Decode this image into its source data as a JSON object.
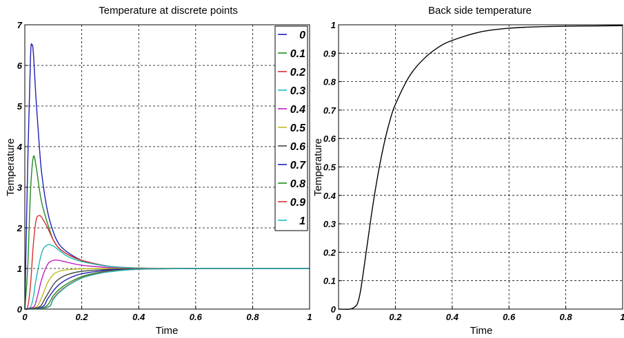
{
  "chart_data": [
    {
      "type": "line",
      "title": "Temperature at discrete points",
      "xlabel": "Time",
      "ylabel": "Temperature",
      "xlim": [
        0,
        1
      ],
      "ylim": [
        0,
        7
      ],
      "xticks": [
        0,
        0.2,
        0.4,
        0.6,
        0.8,
        1
      ],
      "yticks": [
        0,
        1,
        2,
        3,
        4,
        5,
        6,
        7
      ],
      "xtick_labels": [
        "0",
        "0.2",
        "0.4",
        "0.6",
        "0.8",
        "1"
      ],
      "ytick_labels": [
        "0",
        "1",
        "2",
        "3",
        "4",
        "5",
        "6",
        "7"
      ],
      "grid": true,
      "legend_position": "top-right",
      "series": [
        {
          "name": "0",
          "color": "#1f1fb4",
          "x": [
            0,
            0.01,
            0.02,
            0.025,
            0.03,
            0.04,
            0.05,
            0.06,
            0.08,
            0.1,
            0.12,
            0.15,
            0.2,
            0.25,
            0.3,
            0.4,
            0.5,
            0.6,
            0.8,
            1
          ],
          "y": [
            0,
            3.5,
            6.2,
            6.5,
            6.3,
            5.1,
            4.1,
            3.3,
            2.4,
            1.9,
            1.6,
            1.4,
            1.2,
            1.1,
            1.05,
            1.01,
            1.0,
            1.0,
            1.0,
            1.0
          ]
        },
        {
          "name": "0.1",
          "color": "#1e8c1e",
          "x": [
            0,
            0.01,
            0.02,
            0.03,
            0.04,
            0.05,
            0.06,
            0.08,
            0.1,
            0.12,
            0.15,
            0.2,
            0.3,
            0.4,
            0.6,
            0.8,
            1
          ],
          "y": [
            0,
            1.0,
            2.9,
            3.75,
            3.5,
            3.0,
            2.6,
            2.1,
            1.7,
            1.5,
            1.35,
            1.2,
            1.05,
            1.01,
            1.0,
            1.0,
            1.0
          ]
        },
        {
          "name": "0.2",
          "color": "#d62f2f",
          "x": [
            0,
            0.01,
            0.02,
            0.03,
            0.04,
            0.05,
            0.06,
            0.08,
            0.1,
            0.12,
            0.15,
            0.2,
            0.3,
            0.4,
            0.6,
            0.8,
            1
          ],
          "y": [
            0,
            0.05,
            0.6,
            1.6,
            2.2,
            2.3,
            2.25,
            2.0,
            1.7,
            1.5,
            1.35,
            1.2,
            1.05,
            1.01,
            1.0,
            1.0,
            1.0
          ]
        },
        {
          "name": "0.3",
          "color": "#20b8b8",
          "x": [
            0,
            0.02,
            0.03,
            0.04,
            0.06,
            0.08,
            0.1,
            0.12,
            0.15,
            0.2,
            0.3,
            0.4,
            0.6,
            0.8,
            1
          ],
          "y": [
            0,
            0.05,
            0.3,
            0.75,
            1.4,
            1.58,
            1.55,
            1.45,
            1.3,
            1.17,
            1.05,
            1.01,
            1.0,
            1.0,
            1.0
          ]
        },
        {
          "name": "0.4",
          "color": "#c21fc2",
          "x": [
            0,
            0.03,
            0.04,
            0.06,
            0.08,
            0.1,
            0.12,
            0.15,
            0.2,
            0.3,
            0.4,
            0.6,
            0.8,
            1
          ],
          "y": [
            0,
            0.05,
            0.2,
            0.75,
            1.1,
            1.2,
            1.2,
            1.15,
            1.08,
            1.02,
            1.0,
            1.0,
            1.0,
            1.0
          ]
        },
        {
          "name": "0.5",
          "color": "#bcbc1f",
          "x": [
            0,
            0.04,
            0.06,
            0.08,
            0.1,
            0.12,
            0.15,
            0.2,
            0.3,
            0.4,
            0.6,
            0.8,
            1
          ],
          "y": [
            0,
            0.05,
            0.3,
            0.65,
            0.85,
            0.93,
            0.97,
            0.99,
            1.0,
            1.0,
            1.0,
            1.0,
            1.0
          ]
        },
        {
          "name": "0.6",
          "color": "#444444",
          "x": [
            0,
            0.05,
            0.07,
            0.1,
            0.12,
            0.15,
            0.2,
            0.3,
            0.4,
            0.6,
            0.8,
            1
          ],
          "y": [
            0,
            0.05,
            0.25,
            0.6,
            0.74,
            0.85,
            0.93,
            0.98,
            0.995,
            1.0,
            1.0,
            1.0
          ]
        },
        {
          "name": "0.7",
          "color": "#1f1fb4",
          "x": [
            0,
            0.06,
            0.08,
            0.1,
            0.12,
            0.15,
            0.2,
            0.3,
            0.4,
            0.6,
            0.8,
            1
          ],
          "y": [
            0,
            0.05,
            0.25,
            0.45,
            0.6,
            0.74,
            0.87,
            0.96,
            0.99,
            1.0,
            1.0,
            1.0
          ]
        },
        {
          "name": "0.8",
          "color": "#1e8c1e",
          "x": [
            0,
            0.07,
            0.1,
            0.12,
            0.15,
            0.2,
            0.25,
            0.3,
            0.4,
            0.6,
            0.8,
            1
          ],
          "y": [
            0,
            0.05,
            0.33,
            0.48,
            0.63,
            0.8,
            0.89,
            0.94,
            0.985,
            1.0,
            1.0,
            1.0
          ]
        },
        {
          "name": "0.9",
          "color": "#d62f2f",
          "x": [
            0,
            0.08,
            0.1,
            0.12,
            0.15,
            0.2,
            0.25,
            0.3,
            0.4,
            0.6,
            0.8,
            1
          ],
          "y": [
            0,
            0.05,
            0.26,
            0.42,
            0.58,
            0.77,
            0.87,
            0.93,
            0.98,
            1.0,
            1.0,
            1.0
          ]
        },
        {
          "name": "1",
          "color": "#20b8b8",
          "x": [
            0,
            0.08,
            0.1,
            0.12,
            0.15,
            0.2,
            0.25,
            0.3,
            0.4,
            0.6,
            0.8,
            1
          ],
          "y": [
            0,
            0.04,
            0.24,
            0.4,
            0.57,
            0.76,
            0.86,
            0.92,
            0.98,
            1.0,
            1.0,
            1.0
          ]
        }
      ]
    },
    {
      "type": "line",
      "title": "Back side temperature",
      "xlabel": "Time",
      "ylabel": "Temperature",
      "xlim": [
        0,
        1
      ],
      "ylim": [
        0,
        1
      ],
      "xticks": [
        0,
        0.2,
        0.4,
        0.6,
        0.8,
        1
      ],
      "yticks": [
        0,
        0.1,
        0.2,
        0.3,
        0.4,
        0.5,
        0.6,
        0.7,
        0.8,
        0.9,
        1
      ],
      "xtick_labels": [
        "0",
        "0.2",
        "0.4",
        "0.6",
        "0.8",
        "1"
      ],
      "ytick_labels": [
        "0",
        "0.1",
        "0.2",
        "0.3",
        "0.4",
        "0.5",
        "0.6",
        "0.7",
        "0.8",
        "0.9",
        "1"
      ],
      "grid": true,
      "series": [
        {
          "color": "#000000",
          "x": [
            0,
            0.04,
            0.06,
            0.07,
            0.08,
            0.1,
            0.12,
            0.14,
            0.16,
            0.18,
            0.2,
            0.25,
            0.3,
            0.35,
            0.4,
            0.5,
            0.6,
            0.7,
            0.8,
            0.9,
            1
          ],
          "y": [
            0,
            0,
            0.01,
            0.03,
            0.08,
            0.22,
            0.36,
            0.48,
            0.58,
            0.66,
            0.72,
            0.82,
            0.88,
            0.92,
            0.945,
            0.975,
            0.988,
            0.993,
            0.995,
            0.996,
            0.997
          ]
        }
      ]
    }
  ]
}
